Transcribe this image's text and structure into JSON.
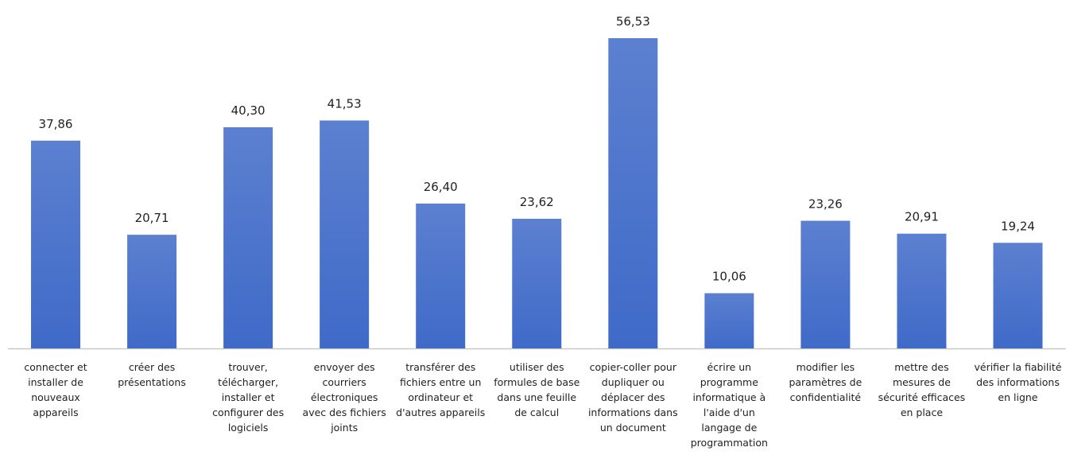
{
  "chart_data": {
    "type": "bar",
    "categories": [
      "connecter et installer de nouveaux appareils",
      "créer des présentations",
      "trouver, télécharger, installer et configurer des logiciels",
      "envoyer des courriers électroniques avec des fichiers joints",
      "transférer des fichiers entre un ordinateur et d'autres appareils",
      "utiliser des formules de base dans une feuille de calcul",
      "copier-coller pour dupliquer ou déplacer des informations dans un document",
      "écrire un programme informatique à l'aide d'un langage de programmation",
      "modifier les paramètres de confidentialité",
      "mettre des mesures de sécurité efficaces en place",
      "vérifier la fiabilité des informations en ligne"
    ],
    "values": [
      37.86,
      20.71,
      40.3,
      41.53,
      26.4,
      23.62,
      56.53,
      10.06,
      23.26,
      20.91,
      19.24
    ],
    "value_labels": [
      "37,86",
      "20,71",
      "40,30",
      "41,53",
      "26,40",
      "23,62",
      "56,53",
      "10,06",
      "23,26",
      "20,91",
      "19,24"
    ],
    "color": "#3f6ac8"
  }
}
